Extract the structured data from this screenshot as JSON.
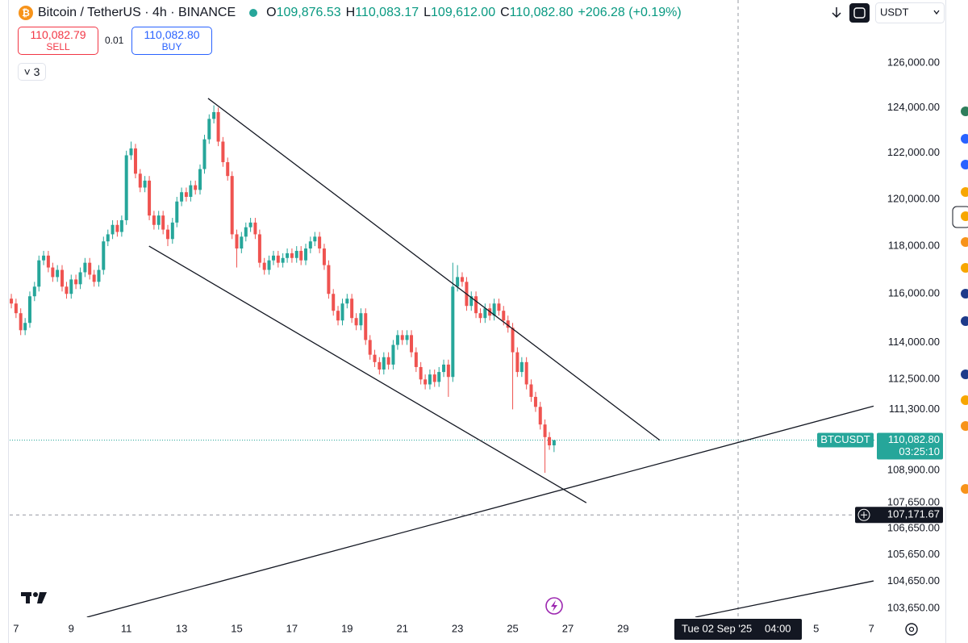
{
  "header": {
    "symbol": "Bitcoin / TetherUS · 4h · BINANCE",
    "ohlc": [
      {
        "label": "O",
        "value": "109,876.53"
      },
      {
        "label": "H",
        "value": "110,083.17"
      },
      {
        "label": "L",
        "value": "109,612.00"
      },
      {
        "label": "C",
        "value": "110,082.80"
      }
    ],
    "change": "+206.28 (+0.19%)",
    "sell_price": "110,082.79",
    "sell": "SELL",
    "spread": "0.01",
    "buy_price": "110,082.80",
    "buy": "BUY",
    "indicators": "3",
    "currency": "USDT"
  },
  "chart_data": {
    "type": "candlestick",
    "log_scale": true,
    "grid": false,
    "up_color": "#26a69a",
    "down_color": "#ef5350",
    "xlim": [
      6.77,
      38.14
    ],
    "xticks": [
      7,
      9,
      11,
      13,
      15,
      17,
      19,
      21,
      23,
      25,
      27,
      29,
      {
        "value": 36,
        "label": "5"
      },
      {
        "value": 38,
        "label": "7"
      }
    ],
    "ylim": [
      103320,
      128870
    ],
    "yticks": [
      {
        "value": 126000,
        "label": "126,000.00"
      },
      {
        "value": 124000,
        "label": "124,000.00"
      },
      {
        "value": 122000,
        "label": "122,000.00"
      },
      {
        "value": 120000,
        "label": "120,000.00"
      },
      {
        "value": 118000,
        "label": "118,000.00"
      },
      {
        "value": 116000,
        "label": "116,000.00"
      },
      {
        "value": 114000,
        "label": "114,000.00"
      },
      {
        "value": 112500,
        "label": "112,500.00"
      },
      {
        "value": 111300,
        "label": "111,300.00"
      },
      {
        "value": 108900,
        "label": "108,900.00"
      },
      {
        "value": 107650,
        "label": "107,650.00"
      },
      {
        "value": 106650,
        "label": "106,650.00"
      },
      {
        "value": 105650,
        "label": "105,650.00"
      },
      {
        "value": 104650,
        "label": "104,650.00"
      },
      {
        "value": 103650,
        "label": "103,650.00"
      }
    ],
    "x": [
      6.83,
      7,
      7.17,
      7.33,
      7.5,
      7.67,
      7.83,
      8,
      8.17,
      8.33,
      8.5,
      8.67,
      8.83,
      9,
      9.17,
      9.33,
      9.5,
      9.67,
      9.83,
      10,
      10.17,
      10.33,
      10.5,
      10.67,
      10.83,
      11,
      11.17,
      11.33,
      11.5,
      11.67,
      11.83,
      12,
      12.17,
      12.33,
      12.5,
      12.67,
      12.83,
      13,
      13.17,
      13.33,
      13.5,
      13.67,
      13.83,
      14,
      14.17,
      14.33,
      14.5,
      14.67,
      14.83,
      15,
      15.17,
      15.33,
      15.5,
      15.67,
      15.83,
      16,
      16.17,
      16.33,
      16.5,
      16.67,
      16.83,
      17,
      17.17,
      17.33,
      17.5,
      17.67,
      17.83,
      18,
      18.17,
      18.33,
      18.5,
      18.67,
      18.83,
      19,
      19.17,
      19.33,
      19.5,
      19.67,
      19.83,
      20,
      20.17,
      20.33,
      20.5,
      20.67,
      20.83,
      21,
      21.17,
      21.33,
      21.5,
      21.67,
      21.83,
      22,
      22.17,
      22.33,
      22.5,
      22.67,
      22.83,
      23,
      23.17,
      23.33,
      23.5,
      23.67,
      23.83,
      24,
      24.17,
      24.33,
      24.5,
      24.67,
      24.83,
      25,
      25.17,
      25.33,
      25.5,
      25.67,
      25.83,
      26,
      26.17,
      26.33,
      26.5
    ],
    "open": [
      115800,
      115600,
      115200,
      114500,
      114800,
      115900,
      116300,
      117400,
      117600,
      117100,
      116700,
      117000,
      116300,
      116000,
      116600,
      116400,
      116900,
      117300,
      116800,
      116500,
      117000,
      118200,
      118500,
      118900,
      118600,
      119100,
      121900,
      122200,
      121100,
      120500,
      120800,
      119300,
      118900,
      119300,
      118700,
      118300,
      119000,
      119900,
      120300,
      120100,
      120600,
      120400,
      121300,
      122600,
      123500,
      123800,
      122500,
      121600,
      121000,
      118500,
      117900,
      118400,
      118800,
      119000,
      118500,
      117300,
      117000,
      117400,
      117600,
      117300,
      117500,
      117700,
      117500,
      117800,
      117400,
      117900,
      118200,
      118400,
      117900,
      117200,
      116000,
      115300,
      114900,
      115600,
      115800,
      115000,
      114700,
      115200,
      114100,
      113500,
      113200,
      112900,
      113400,
      113100,
      113900,
      114300,
      114100,
      114300,
      113600,
      113000,
      112500,
      112300,
      112700,
      112400,
      112800,
      113100,
      112600,
      116300,
      116700,
      116500,
      115500,
      115900,
      115200,
      115000,
      115400,
      115100,
      115600,
      115300,
      114900,
      114600,
      113600,
      112800,
      113200,
      112300,
      111800,
      111400,
      110700,
      110200,
      109876.53
    ],
    "high": [
      116000,
      115800,
      115400,
      115000,
      116100,
      116500,
      117600,
      117800,
      117800,
      117300,
      117200,
      117200,
      116500,
      116800,
      116800,
      117100,
      117500,
      117500,
      117000,
      117200,
      118400,
      118700,
      119100,
      119100,
      119300,
      122100,
      122500,
      122400,
      121300,
      121000,
      121000,
      119500,
      119500,
      119500,
      118900,
      119200,
      120100,
      120500,
      120500,
      120800,
      120800,
      121500,
      122800,
      123700,
      124100,
      124000,
      122700,
      121800,
      121200,
      118700,
      118600,
      119000,
      119200,
      119200,
      118700,
      117500,
      117600,
      117800,
      117800,
      117700,
      117900,
      117900,
      118000,
      118000,
      118100,
      118400,
      118600,
      118600,
      118100,
      117400,
      116200,
      115500,
      115800,
      116000,
      116000,
      115200,
      115400,
      115400,
      114300,
      113700,
      113400,
      113600,
      113600,
      114100,
      114500,
      114500,
      114500,
      114500,
      113800,
      113200,
      112700,
      112900,
      112900,
      113000,
      113300,
      113300,
      117300,
      117200,
      116900,
      116700,
      116100,
      116100,
      115400,
      115600,
      115600,
      115800,
      115800,
      115500,
      115100,
      114800,
      113800,
      113400,
      113400,
      112500,
      112000,
      111600,
      110900,
      110400,
      110083.17
    ],
    "low": [
      115400,
      115000,
      114300,
      114300,
      114600,
      115700,
      116100,
      117200,
      116900,
      116500,
      116500,
      116100,
      115800,
      115800,
      116200,
      116200,
      116700,
      116600,
      116300,
      116300,
      116800,
      118000,
      118300,
      118400,
      118400,
      118900,
      121700,
      120900,
      120300,
      120300,
      119100,
      118700,
      118700,
      118500,
      118000,
      118100,
      118800,
      119700,
      119900,
      119900,
      120200,
      120200,
      121100,
      122400,
      123300,
      122300,
      121400,
      120800,
      118300,
      117100,
      117700,
      118200,
      118600,
      118300,
      117100,
      116800,
      116800,
      117200,
      117100,
      117100,
      117300,
      117300,
      117300,
      117200,
      117200,
      117700,
      118000,
      117700,
      117000,
      115800,
      115100,
      114700,
      114700,
      115400,
      114800,
      114500,
      114500,
      113900,
      113300,
      113000,
      112700,
      112700,
      112900,
      112900,
      113700,
      113900,
      113900,
      113400,
      112800,
      112300,
      112100,
      112100,
      112200,
      112200,
      112600,
      111800,
      112400,
      116100,
      116300,
      115300,
      115300,
      115000,
      114800,
      114800,
      114900,
      114900,
      115100,
      114700,
      114400,
      111300,
      112600,
      112600,
      112100,
      111600,
      111200,
      110500,
      108800,
      109700,
      109612
    ],
    "close": [
      115600,
      115200,
      114500,
      114800,
      115900,
      116300,
      117400,
      117600,
      117100,
      116700,
      117000,
      116300,
      116000,
      116600,
      116400,
      116900,
      117300,
      116800,
      116500,
      117000,
      118200,
      118500,
      118900,
      118600,
      119100,
      121900,
      122200,
      121100,
      120500,
      120800,
      119300,
      118900,
      119300,
      118700,
      118300,
      119000,
      119900,
      120300,
      120100,
      120600,
      120400,
      121300,
      122600,
      123500,
      123800,
      122500,
      121600,
      121000,
      118500,
      117900,
      118400,
      118800,
      119000,
      118500,
      117300,
      117000,
      117400,
      117600,
      117300,
      117500,
      117700,
      117500,
      117800,
      117400,
      117900,
      118200,
      118400,
      117900,
      117200,
      116000,
      115300,
      114900,
      115600,
      115800,
      115000,
      114700,
      115200,
      114100,
      113500,
      113200,
      112900,
      113400,
      113100,
      113900,
      114300,
      114100,
      114300,
      113600,
      113000,
      112500,
      112300,
      112700,
      112400,
      112800,
      113100,
      112600,
      116300,
      116700,
      116500,
      115500,
      115900,
      115200,
      115000,
      115400,
      115100,
      115600,
      115300,
      114900,
      114600,
      113600,
      112800,
      113200,
      112300,
      111800,
      111400,
      110700,
      110200,
      109876.53,
      110082.8
    ],
    "trendlines": [
      {
        "x": [
          13.96,
          30.33
        ],
        "y": [
          124410,
          110080
        ]
      },
      {
        "x": [
          11.82,
          27.67
        ],
        "y": [
          118000,
          107640
        ]
      },
      {
        "x": [
          9.57,
          38.08
        ],
        "y": [
          103320,
          111430
        ]
      },
      {
        "x": [
          31.62,
          38.08
        ],
        "y": [
          103320,
          104670
        ]
      }
    ],
    "last_price": {
      "value": 110082.8,
      "label": "110,082.80",
      "symbol": "BTCUSDT",
      "countdown": "03:25:10"
    },
    "crosshair": {
      "x": 33.17,
      "y": 107171.67,
      "y_label": "107,171.67",
      "date": "Tue 02 Sep '25",
      "time": "04:00"
    }
  }
}
